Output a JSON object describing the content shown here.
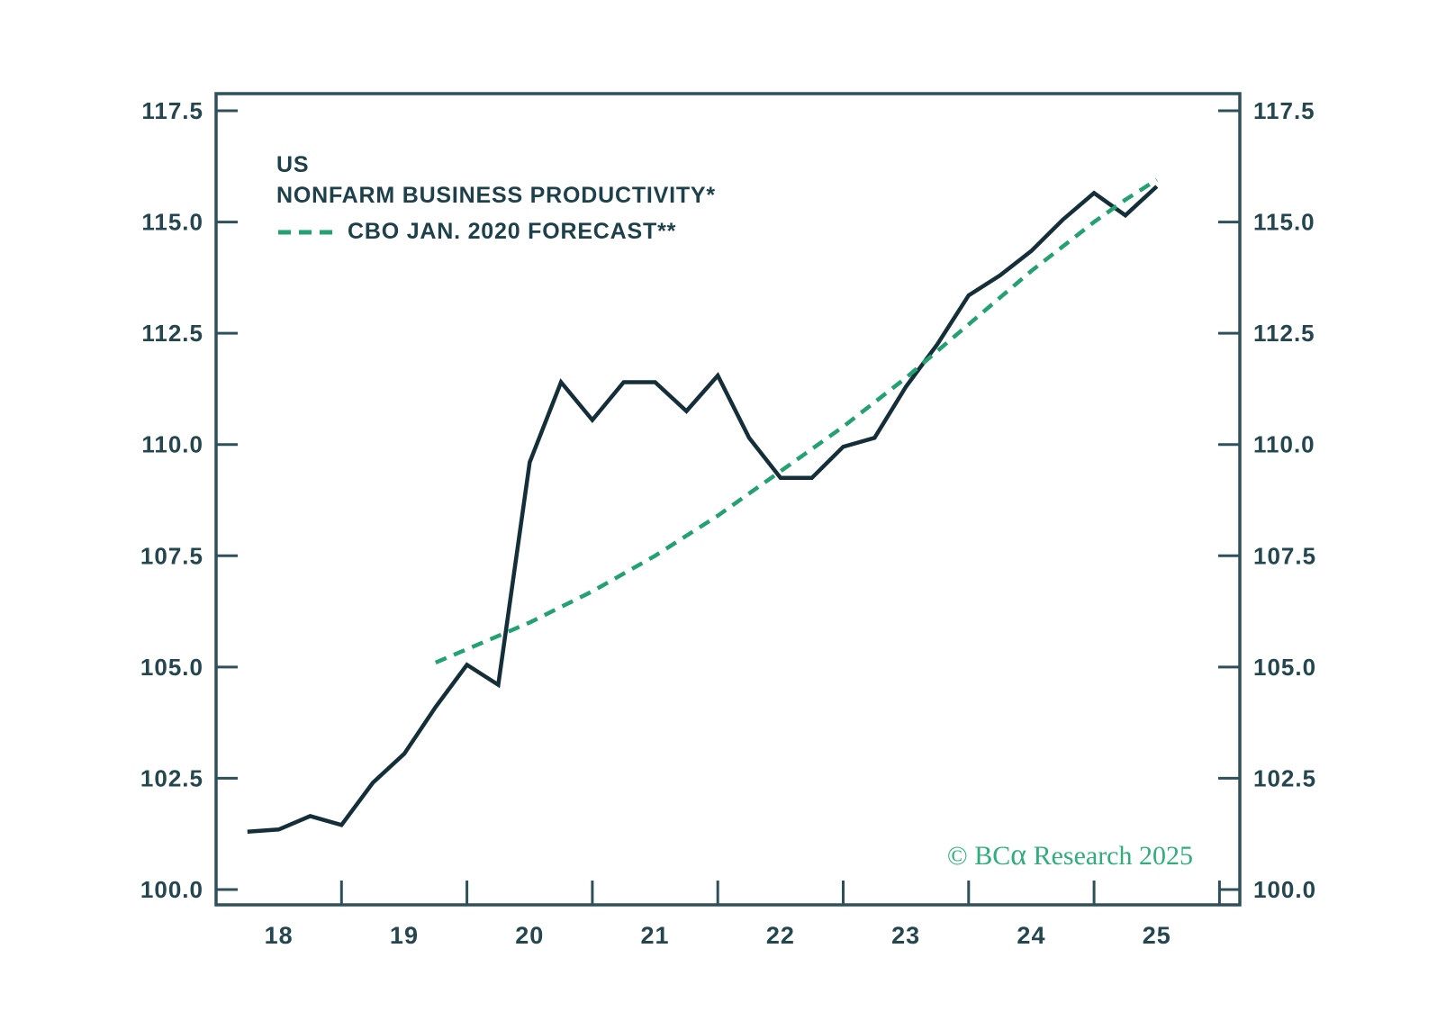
{
  "header": {
    "region": "US",
    "title": "NONFARM BUSINESS PRODUCTIVITY*"
  },
  "legend": {
    "forecast_label": "CBO JAN. 2020 FORECAST**"
  },
  "copyright": {
    "prefix": "© BC",
    "alpha": "α",
    "suffix": " Research 2025"
  },
  "colors": {
    "actual_line": "#152f3a",
    "forecast_line": "#23a171",
    "axis": "#2e505a",
    "tick_text": "#24464f",
    "copyright_green": "#2fae7c",
    "background": "#ffffff"
  },
  "chart_data": {
    "type": "line",
    "title": "US NONFARM BUSINESS PRODUCTIVITY*",
    "xlabel": "",
    "ylabel": "",
    "ylim": [
      100.0,
      117.5
    ],
    "xlim": [
      2018.0,
      2026.16
    ],
    "grid": false,
    "legend_position": "top-left",
    "y_axis": {
      "ticks": [
        100.0,
        102.5,
        105.0,
        107.5,
        110.0,
        112.5,
        115.0,
        117.5
      ],
      "tick_labels": [
        "100.0",
        "102.5",
        "105.0",
        "107.5",
        "110.0",
        "112.5",
        "115.0",
        "117.5"
      ],
      "sides": [
        "left",
        "right"
      ]
    },
    "x_axis": {
      "boundary_ticks": [
        2018,
        2019,
        2020,
        2021,
        2022,
        2023,
        2024,
        2025,
        2026
      ],
      "label_positions": [
        2018.5,
        2019.5,
        2020.5,
        2021.5,
        2022.5,
        2023.5,
        2024.5,
        2025.5
      ],
      "labels": [
        "18",
        "19",
        "20",
        "21",
        "22",
        "23",
        "24",
        "25"
      ]
    },
    "series": [
      {
        "name": "US NONFARM BUSINESS PRODUCTIVITY*",
        "style": "solid",
        "color": "#152f3a",
        "x": [
          2018.25,
          2018.5,
          2018.75,
          2019.0,
          2019.25,
          2019.5,
          2019.75,
          2020.0,
          2020.25,
          2020.5,
          2020.75,
          2021.0,
          2021.25,
          2021.5,
          2021.75,
          2022.0,
          2022.25,
          2022.5,
          2022.75,
          2023.0,
          2023.25,
          2023.5,
          2023.75,
          2024.0,
          2024.25,
          2024.5,
          2024.75,
          2025.0,
          2025.25,
          2025.5
        ],
        "values": [
          101.3,
          101.35,
          101.65,
          101.45,
          102.4,
          103.05,
          104.1,
          105.05,
          104.6,
          109.6,
          111.4,
          110.55,
          111.4,
          111.4,
          110.75,
          111.55,
          110.15,
          109.25,
          109.25,
          109.95,
          110.15,
          111.3,
          112.25,
          113.35,
          113.8,
          114.35,
          115.05,
          115.65,
          115.15,
          115.8
        ]
      },
      {
        "name": "CBO JAN. 2020 FORECAST**",
        "style": "dashed",
        "color": "#23a171",
        "x": [
          2019.75,
          2020.0,
          2020.25,
          2020.5,
          2020.75,
          2021.0,
          2021.25,
          2021.5,
          2021.75,
          2022.0,
          2022.25,
          2022.5,
          2022.75,
          2023.0,
          2023.25,
          2023.5,
          2023.75,
          2024.0,
          2024.25,
          2024.5,
          2024.75,
          2025.0,
          2025.25,
          2025.5
        ],
        "values": [
          105.1,
          105.4,
          105.7,
          106.0,
          106.35,
          106.7,
          107.1,
          107.5,
          107.95,
          108.4,
          108.9,
          109.4,
          109.9,
          110.4,
          110.95,
          111.5,
          112.1,
          112.7,
          113.3,
          113.9,
          114.45,
          115.0,
          115.5,
          115.95
        ]
      }
    ]
  }
}
